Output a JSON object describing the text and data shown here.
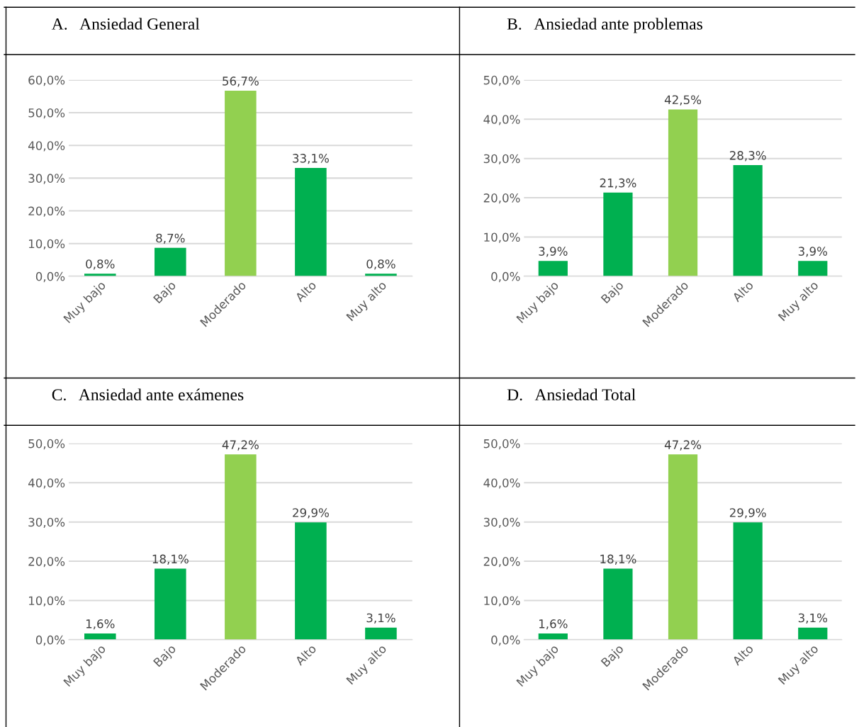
{
  "chart_data": [
    {
      "type": "bar",
      "title": "A.   Ansiedad General",
      "categories": [
        "Muy bajo",
        "Bajo",
        "Moderado",
        "Alto",
        "Muy alto"
      ],
      "values": [
        0.8,
        8.7,
        56.7,
        33.1,
        0.8
      ],
      "colors": [
        "#00b050",
        "#00b050",
        "#92d050",
        "#00b050",
        "#00b050"
      ],
      "value_labels": [
        "0,8%",
        "8,7%",
        "56,7%",
        "33,1%",
        "0,8%"
      ],
      "ylim": [
        0,
        60
      ],
      "yticks": [
        {
          "value": 0,
          "label": "0,0%"
        },
        {
          "value": 10,
          "label": "10,0%"
        },
        {
          "value": 20,
          "label": "20,0%"
        },
        {
          "value": 30,
          "label": "30,0%"
        },
        {
          "value": 40,
          "label": "40,0%"
        },
        {
          "value": 50,
          "label": "50,0%"
        },
        {
          "value": 60,
          "label": "60,0%"
        }
      ],
      "grid": "y"
    },
    {
      "type": "bar",
      "title": "B.   Ansiedad ante problemas",
      "categories": [
        "Muy bajo",
        "Bajo",
        "Moderado",
        "Alto",
        "Muy alto"
      ],
      "values": [
        3.9,
        21.3,
        42.5,
        28.3,
        3.9
      ],
      "colors": [
        "#00b050",
        "#00b050",
        "#92d050",
        "#00b050",
        "#00b050"
      ],
      "value_labels": [
        "3,9%",
        "21,3%",
        "42,5%",
        "28,3%",
        "3,9%"
      ],
      "ylim": [
        0,
        50
      ],
      "yticks": [
        {
          "value": 0,
          "label": "0,0%"
        },
        {
          "value": 10,
          "label": "10,0%"
        },
        {
          "value": 20,
          "label": "20,0%"
        },
        {
          "value": 30,
          "label": "30,0%"
        },
        {
          "value": 40,
          "label": "40,0%"
        },
        {
          "value": 50,
          "label": "50,0%"
        }
      ],
      "grid": "y"
    },
    {
      "type": "bar",
      "title": "C.   Ansiedad ante exámenes",
      "categories": [
        "Muy bajo",
        "Bajo",
        "Moderado",
        "Alto",
        "Muy alto"
      ],
      "values": [
        1.6,
        18.1,
        47.2,
        29.9,
        3.1
      ],
      "colors": [
        "#00b050",
        "#00b050",
        "#92d050",
        "#00b050",
        "#00b050"
      ],
      "value_labels": [
        "1,6%",
        "18,1%",
        "47,2%",
        "29,9%",
        "3,1%"
      ],
      "ylim": [
        0,
        50
      ],
      "yticks": [
        {
          "value": 0,
          "label": "0,0%"
        },
        {
          "value": 10,
          "label": "10,0%"
        },
        {
          "value": 20,
          "label": "20,0%"
        },
        {
          "value": 30,
          "label": "30,0%"
        },
        {
          "value": 40,
          "label": "40,0%"
        },
        {
          "value": 50,
          "label": "50,0%"
        }
      ],
      "grid": "y"
    },
    {
      "type": "bar",
      "title": "D.   Ansiedad Total",
      "categories": [
        "Muy bajo",
        "Bajo",
        "Moderado",
        "Alto",
        "Muy alto"
      ],
      "values": [
        1.6,
        18.1,
        47.2,
        29.9,
        3.1
      ],
      "colors": [
        "#00b050",
        "#00b050",
        "#92d050",
        "#00b050",
        "#00b050"
      ],
      "value_labels": [
        "1,6%",
        "18,1%",
        "47,2%",
        "29,9%",
        "3,1%"
      ],
      "ylim": [
        0,
        50
      ],
      "yticks": [
        {
          "value": 0,
          "label": "0,0%"
        },
        {
          "value": 10,
          "label": "10,0%"
        },
        {
          "value": 20,
          "label": "20,0%"
        },
        {
          "value": 30,
          "label": "30,0%"
        },
        {
          "value": 40,
          "label": "40,0%"
        },
        {
          "value": 50,
          "label": "50,0%"
        }
      ],
      "grid": "y"
    }
  ]
}
